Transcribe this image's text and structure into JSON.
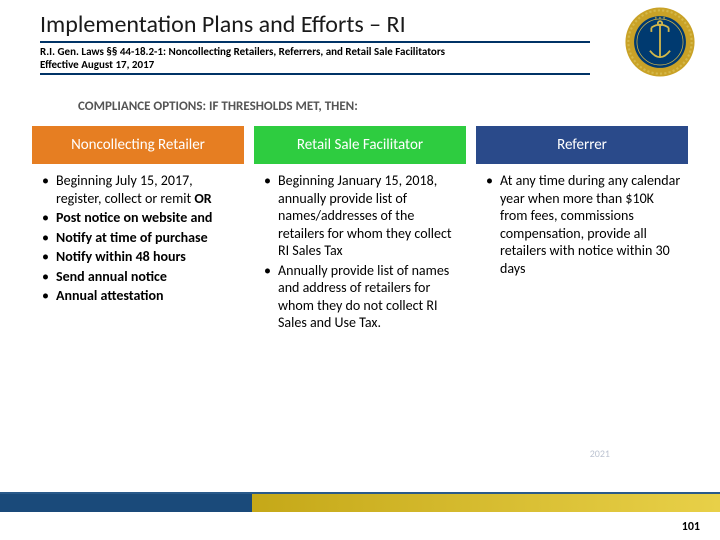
{
  "header": {
    "title": "Implementation Plans and Efforts – RI",
    "subtitle": "R.I. Gen. Laws §§ 44-18.2-1: Noncollecting Retailers, Referrers, and Retail Sale Facilitators",
    "effective": "Effective August 17, 2017",
    "title_underline_color": "#003366"
  },
  "seal": {
    "outer_color": "#c9a227",
    "rope_color": "#d4b84a",
    "inner_color": "#003a70",
    "anchor_color": "#d4b84a"
  },
  "compliance_heading": "COMPLIANCE OPTIONS: IF THRESHOLDS MET, THEN:",
  "columns": [
    {
      "name": "noncollecting-retailer",
      "header_label": "Noncollecting Retailer",
      "header_bg": "#e67e22",
      "items_html": [
        "Beginning July 15, 2017, register, collect or remit <b>OR</b>",
        "<b>Post notice on website and</b>",
        "<b>Notify at time of purchase</b>",
        "<b>Notify within 48 hours</b>",
        "<b>Send annual notice</b>",
        "<b>Annual attestation</b>"
      ]
    },
    {
      "name": "retail-sale-facilitator",
      "header_label": "Retail Sale Facilitator",
      "header_bg": "#2ecc40",
      "items_html": [
        "Beginning January 15, 2018, annually provide list of names/addresses of the retailers for whom they collect RI Sales Tax",
        "Annually provide list of names and address of retailers for whom they do not collect RI Sales and Use Tax."
      ]
    },
    {
      "name": "referrer",
      "header_label": "Referrer",
      "header_bg": "#2a4a8a",
      "items_html": [
        "At any time during any calendar year when more than $10K from fees, commissions compensation, provide all retailers with notice within 30 days"
      ]
    }
  ],
  "bottom_band": {
    "left_color": "#1a4a7a",
    "right_start": "#c5a818",
    "right_end": "#e8d048",
    "line_color": "#2a5a8a"
  },
  "watermark": "2021",
  "page_number": "101",
  "fonts": {
    "title_size_pt": 24,
    "subtitle_size_pt": 11,
    "heading_size_pt": 13,
    "body_size_pt": 14,
    "col_header_size_pt": 15
  }
}
